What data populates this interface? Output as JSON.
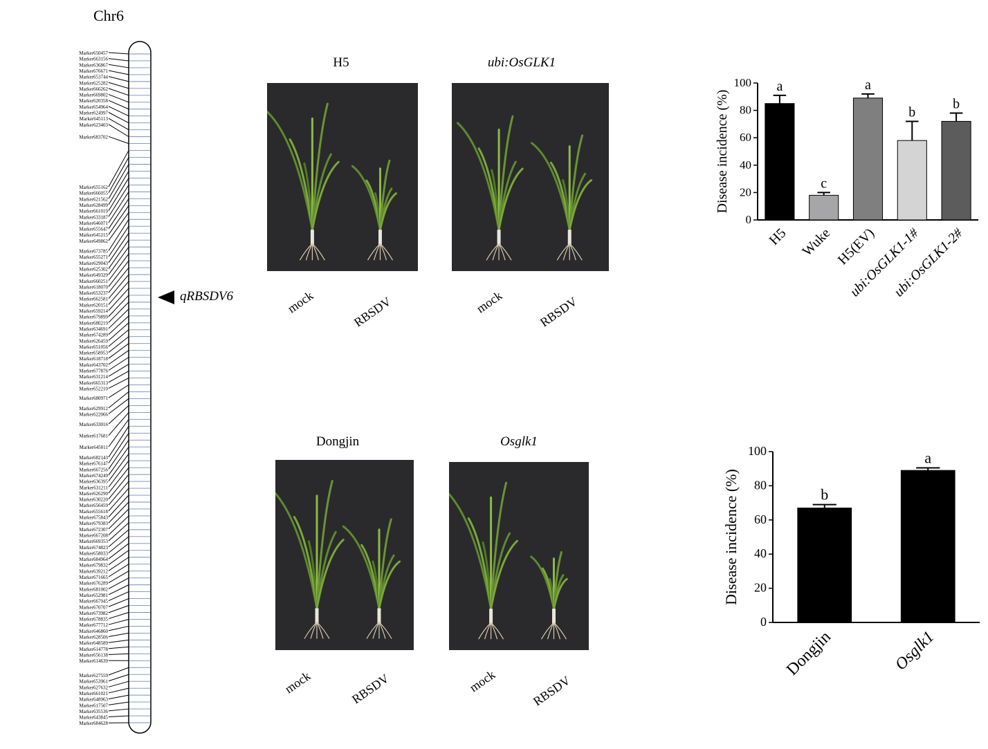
{
  "chromosome": {
    "title": "Chr6",
    "qtl_label": "qRBSDV6",
    "markers": [
      "Marker650457",
      "Marker663156",
      "Marker636867",
      "Marker676671",
      "Marker653744",
      "Marker625282",
      "Marker666262",
      "Marker669802",
      "Marker620358",
      "Marker654964",
      "Marker624997",
      "Marker645113",
      "Marker623403",
      "Marker683702",
      "Marker655162",
      "Marker666055",
      "Marker621562",
      "Marker628499",
      "Marker661019",
      "Marker633187",
      "Marker646071",
      "Marker655647",
      "Marker645215",
      "Marker649862",
      "Marker673785",
      "Marker655271",
      "Marker629043",
      "Marker625302",
      "Marker649329",
      "Marker660251",
      "Marker618070",
      "Marker653237",
      "Marker662581",
      "Marker620151",
      "Marker659214",
      "Marker679899",
      "Marker680219",
      "Marker634691",
      "Marker674289",
      "Marker626459",
      "Marker651056",
      "Marker658953",
      "Marker618718",
      "Marker643702",
      "Marker677876",
      "Marker631214",
      "Marker665313",
      "Marker652210",
      "Marker680971",
      "Marker629912",
      "Marker622066",
      "Marker633016",
      "Marker617681",
      "Marker645011",
      "Marker682143",
      "Marker676147",
      "Marker667256",
      "Marker674249",
      "Marker636395",
      "Marker631211",
      "Marker626290",
      "Marker630220",
      "Marker656459",
      "Marker655618",
      "Marker675843",
      "Marker679383",
      "Marker672307",
      "Marker667208",
      "Marker669353",
      "Marker674823",
      "Marker658033",
      "Marker684964",
      "Marker679832",
      "Marker639212",
      "Marker671665",
      "Marker676289",
      "Marker681002",
      "Marker652981",
      "Marker667945",
      "Marker670707",
      "Marker673982",
      "Marker678835",
      "Marker677712",
      "Marker646860",
      "Marker628506",
      "Marker648589",
      "Marker614778",
      "Marker656138",
      "Marker614639",
      "Marker627559",
      "Marker653961",
      "Marker627632",
      "Marker661021",
      "Marker648963",
      "Marker617507",
      "Marker635536",
      "Marker643845",
      "Marker684628"
    ]
  },
  "photos": {
    "top_left": {
      "title": "H5",
      "labels": [
        "mock",
        "RBSDV"
      ]
    },
    "top_right": {
      "title": "ubi:OsGLK1",
      "labels": [
        "mock",
        "RBSDV"
      ]
    },
    "bottom_left": {
      "title": "Dongjin",
      "labels": [
        "mock",
        "RBSDV"
      ]
    },
    "bottom_right": {
      "title": "Osglk1",
      "labels": [
        "mock",
        "RBSDV"
      ]
    }
  },
  "chart_data": [
    {
      "type": "bar",
      "ylabel": "Disease incidence (%)",
      "ylim": [
        0,
        100
      ],
      "yticks": [
        0,
        20,
        40,
        60,
        80,
        100
      ],
      "categories": [
        "H5",
        "Wuke",
        "H5(EV)",
        "ubi:OsGLK1-1#",
        "ubi:OsGLK1-2#"
      ],
      "category_italic": [
        false,
        false,
        false,
        true,
        true
      ],
      "values": [
        85,
        18,
        89,
        58,
        72
      ],
      "errors": [
        6,
        2,
        3,
        14,
        6
      ],
      "significance": [
        "a",
        "c",
        "a",
        "b",
        "b"
      ],
      "colors": [
        "#000000",
        "#a6a6a8",
        "#7f7f7f",
        "#d4d4d4",
        "#5c5c5c"
      ]
    },
    {
      "type": "bar",
      "ylabel": "Disease incidence (%)",
      "ylim": [
        0,
        100
      ],
      "yticks": [
        0,
        20,
        40,
        60,
        80,
        100
      ],
      "categories": [
        "Dongjin",
        "Osglk1"
      ],
      "category_italic": [
        false,
        true
      ],
      "values": [
        67,
        89
      ],
      "errors": [
        2,
        1.5
      ],
      "significance": [
        "b",
        "a"
      ],
      "colors": [
        "#000000",
        "#000000"
      ]
    }
  ]
}
